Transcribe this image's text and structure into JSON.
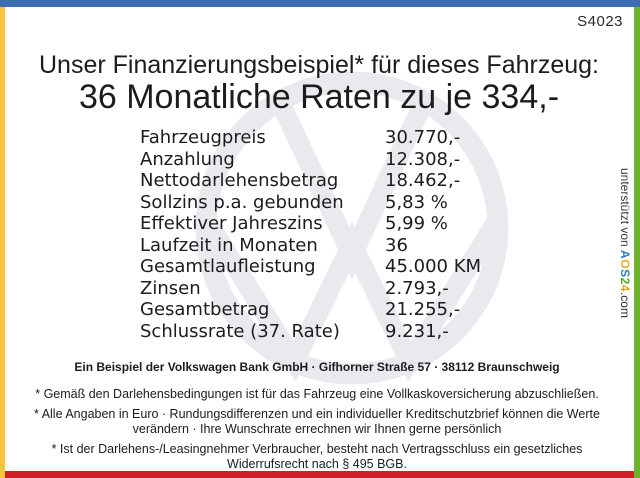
{
  "station_id": "S4023",
  "header": {
    "title": "Unser Finanzierungsbeispiel* für dieses Fahrzeug:",
    "subtitle": "36 Monatliche Raten zu je 334,-"
  },
  "finance": {
    "rows": [
      {
        "label": "Fahrzeugpreis",
        "value": "30.770,-"
      },
      {
        "label": "Anzahlung",
        "value": "12.308,-"
      },
      {
        "label": "Nettodarlehensbetrag",
        "value": "18.462,-"
      },
      {
        "label": "Sollzins p.a. gebunden",
        "value": "5,83 %"
      },
      {
        "label": "Effektiver Jahreszins",
        "value": "5,99 %"
      },
      {
        "label": "Laufzeit in Monaten",
        "value": "36"
      },
      {
        "label": "Gesamtlaufleistung",
        "value": "45.000 KM"
      },
      {
        "label": "Zinsen",
        "value": "2.793,-"
      },
      {
        "label": "Gesamtbetrag",
        "value": "21.255,-"
      },
      {
        "label": "Schlussrate (37. Rate)",
        "value": "9.231,-"
      }
    ]
  },
  "footer": {
    "bank_line": "Ein Beispiel der Volkswagen Bank GmbH · Gifhorner Straße 57 · 38112 Braunschweig",
    "disclaimers": [
      "* Gemäß den Darlehensbedingungen ist für das Fahrzeug eine Vollkaskoversicherung abzuschließen.",
      "* Alle Angaben in Euro · Rundungsdifferenzen und ein individueller Kreditschutzbrief können die Werte verändern · Ihre Wunschrate errechnen wir Ihnen gerne persönlich",
      "* Ist der Darlehens-/Leasingnehmer Verbraucher, besteht nach Vertragsschluss ein gesetzliches Widerrufsrecht nach § 495 BGB."
    ]
  },
  "support": {
    "prefix": "unterstützt von ",
    "logo_letters": [
      {
        "char": "A",
        "color": "#2e79c0"
      },
      {
        "char": "O",
        "color": "#f5a623"
      },
      {
        "char": "S",
        "color": "#2e79c0"
      },
      {
        "char": "2",
        "color": "#56a332"
      },
      {
        "char": "4",
        "color": "#e0a818"
      }
    ],
    "suffix": ".com"
  },
  "colors": {
    "stripe_top": "#3e6cb0",
    "stripe_left": "#f8c43e",
    "stripe_right": "#6db32c",
    "stripe_bottom": "#cf2027",
    "watermark": "#e9eaee"
  },
  "watermark_icon": "vw-logo"
}
